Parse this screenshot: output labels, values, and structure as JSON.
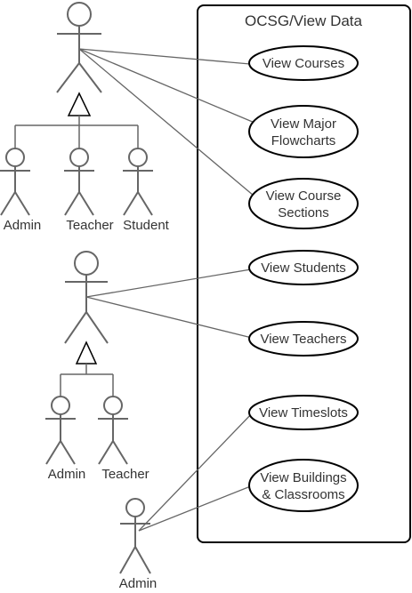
{
  "system": {
    "title": "OCSG/View Data"
  },
  "actors": {
    "general_user": {
      "label": ""
    },
    "gen1_admin": {
      "label": "Admin"
    },
    "gen1_teacher": {
      "label": "Teacher"
    },
    "gen1_student": {
      "label": "Student"
    },
    "staff_user": {
      "label": ""
    },
    "gen2_admin": {
      "label": "Admin"
    },
    "gen2_teacher": {
      "label": "Teacher"
    },
    "admin_user": {
      "label": "Admin"
    }
  },
  "use_cases": {
    "view_courses": {
      "line1": "View Courses",
      "line2": ""
    },
    "view_major_flowcharts": {
      "line1": "View Major",
      "line2": "Flowcharts"
    },
    "view_course_sections": {
      "line1": "View Course",
      "line2": "Sections"
    },
    "view_students": {
      "line1": "View Students",
      "line2": ""
    },
    "view_teachers": {
      "line1": "View Teachers",
      "line2": ""
    },
    "view_timeslots": {
      "line1": "View Timeslots",
      "line2": ""
    },
    "view_buildings": {
      "line1": "View Buildings",
      "line2": "& Classrooms"
    }
  },
  "colors": {
    "actor_stroke": "#666666",
    "line": "#666666",
    "box": "#000000",
    "text": "#333333"
  }
}
